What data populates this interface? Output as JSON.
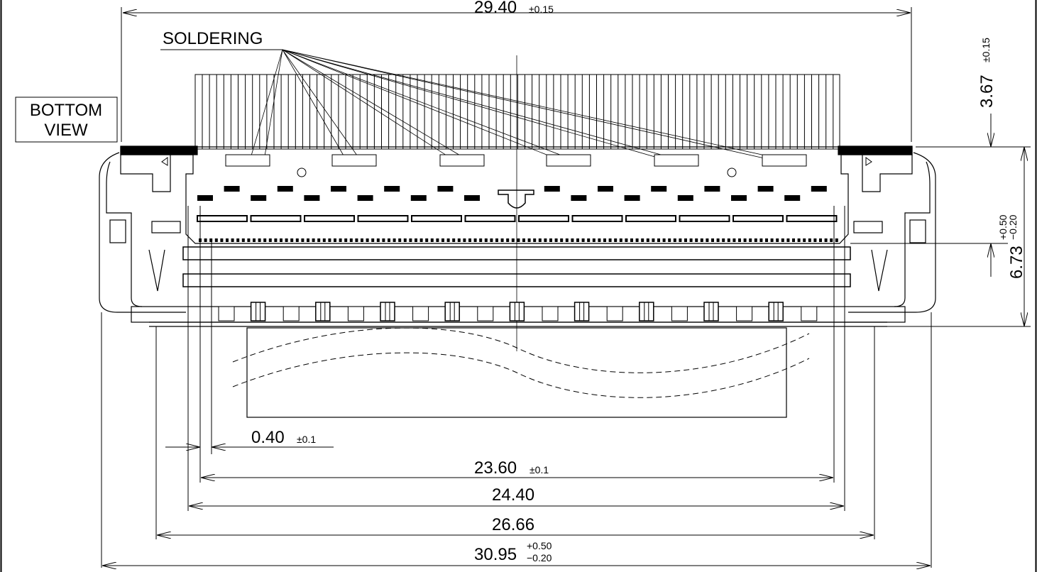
{
  "view_label": {
    "line1": "BOTTOM",
    "line2": "VIEW"
  },
  "soldering_label": "SOLDERING",
  "dimensions": {
    "top_width": {
      "value": "29.40",
      "tol": "±0.15"
    },
    "right_top": {
      "value": "3.67",
      "tol": "±0.15"
    },
    "right_height": {
      "value": "6.73",
      "tol_plus": "+0.50",
      "tol_minus": "−0.20"
    },
    "pitch": {
      "value": "0.40",
      "tol": "±0.1"
    },
    "d23": {
      "value": "23.60",
      "tol": "±0.1"
    },
    "d24": {
      "value": "24.40"
    },
    "d26": {
      "value": "26.66"
    },
    "d30": {
      "value": "30.95",
      "tol_plus": "+0.50",
      "tol_minus": "−0.20"
    }
  }
}
